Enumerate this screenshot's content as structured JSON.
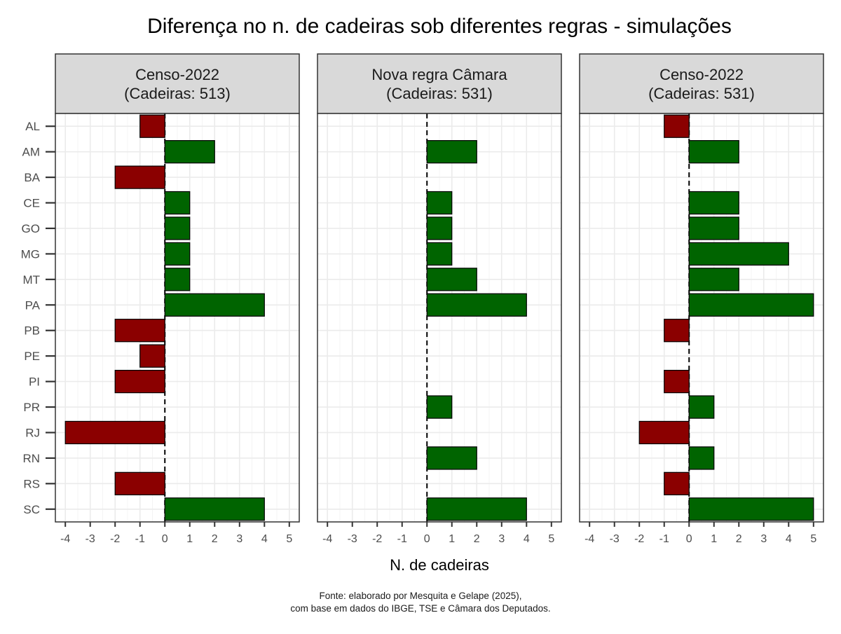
{
  "chart_data": {
    "type": "bar",
    "orientation": "horizontal",
    "title": "Diferença no n. de cadeiras sob diferentes regras - simulações",
    "xlabel": "N. de cadeiras",
    "ylabel": "",
    "xlim": [
      -4.4,
      5.4
    ],
    "x_ticks": [
      -4,
      -3,
      -2,
      -1,
      0,
      1,
      2,
      3,
      4,
      5
    ],
    "categories": [
      "AL",
      "AM",
      "BA",
      "CE",
      "GO",
      "MG",
      "MT",
      "PA",
      "PB",
      "PE",
      "PI",
      "PR",
      "RJ",
      "RN",
      "RS",
      "SC"
    ],
    "grid": true,
    "reference_line": {
      "x": 0,
      "style": "dashed"
    },
    "colors": {
      "positive": "#006400",
      "negative": "#8b0000",
      "grid": "#ebebeb",
      "strip": "#d9d9d9",
      "border": "#333333"
    },
    "panels": [
      {
        "strip_line1": "Censo-2022",
        "strip_line2": "(Cadeiras: 513)",
        "values": [
          -1,
          2,
          -2,
          1,
          1,
          1,
          1,
          4,
          -2,
          -1,
          -2,
          0,
          -4,
          0,
          -2,
          4
        ]
      },
      {
        "strip_line1": "Nova regra Câmara",
        "strip_line2": "(Cadeiras: 531)",
        "values": [
          0,
          2,
          0,
          1,
          1,
          1,
          2,
          4,
          0,
          0,
          0,
          1,
          0,
          2,
          0,
          4
        ]
      },
      {
        "strip_line1": "Censo-2022",
        "strip_line2": "(Cadeiras: 531)",
        "values": [
          -1,
          2,
          0,
          2,
          2,
          4,
          2,
          5,
          -1,
          0,
          -1,
          1,
          -2,
          1,
          -1,
          5
        ]
      }
    ]
  },
  "caption": {
    "line1": "Fonte: elaborado por Mesquita e Gelape (2025),",
    "line2": "com base em dados do IBGE, TSE e Câmara dos Deputados."
  }
}
